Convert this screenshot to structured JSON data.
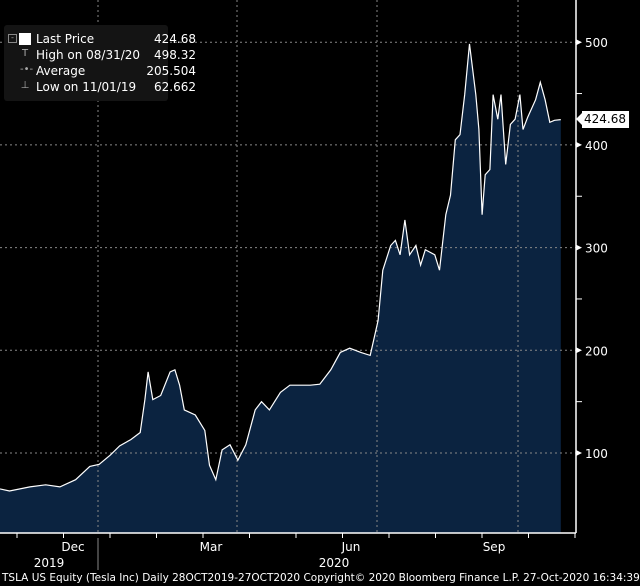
{
  "chart_data": {
    "type": "area",
    "title": "TSLA US Equity (Tesla Inc)",
    "ylim": [
      0,
      540
    ],
    "yticks": [
      100,
      200,
      300,
      400,
      500
    ],
    "xticks": [
      {
        "label": "Dec"
      },
      {
        "label": "Mar"
      },
      {
        "label": "Jun"
      },
      {
        "label": "Sep"
      }
    ],
    "years": [
      "2019",
      "2020"
    ],
    "grid": true,
    "line_color": "#ffffff",
    "fill_color": "#0b2340",
    "x_unit": "days since 28-Oct-2019",
    "points": [
      [
        0,
        65
      ],
      [
        6,
        63
      ],
      [
        19,
        67
      ],
      [
        29,
        69
      ],
      [
        38,
        67
      ],
      [
        48,
        74
      ],
      [
        57,
        87
      ],
      [
        63,
        89
      ],
      [
        70,
        98
      ],
      [
        76,
        107
      ],
      [
        83,
        113
      ],
      [
        89,
        120
      ],
      [
        92,
        152
      ],
      [
        94,
        179
      ],
      [
        97,
        152
      ],
      [
        102,
        156
      ],
      [
        108,
        179
      ],
      [
        111,
        181
      ],
      [
        114,
        166
      ],
      [
        117,
        142
      ],
      [
        124,
        137
      ],
      [
        130,
        122
      ],
      [
        133,
        88
      ],
      [
        137,
        74
      ],
      [
        141,
        103
      ],
      [
        146,
        108
      ],
      [
        151,
        93
      ],
      [
        156,
        108
      ],
      [
        162,
        142
      ],
      [
        166,
        150
      ],
      [
        171,
        142
      ],
      [
        178,
        159
      ],
      [
        184,
        166
      ],
      [
        190,
        166
      ],
      [
        197,
        166
      ],
      [
        203,
        167
      ],
      [
        210,
        181
      ],
      [
        216,
        198
      ],
      [
        222,
        202
      ],
      [
        229,
        198
      ],
      [
        235,
        195
      ],
      [
        240,
        229
      ],
      [
        243,
        278
      ],
      [
        248,
        302
      ],
      [
        251,
        307
      ],
      [
        254,
        293
      ],
      [
        257,
        327
      ],
      [
        260,
        293
      ],
      [
        264,
        302
      ],
      [
        267,
        283
      ],
      [
        270,
        298
      ],
      [
        276,
        293
      ],
      [
        279,
        278
      ],
      [
        283,
        332
      ],
      [
        286,
        351
      ],
      [
        289,
        405
      ],
      [
        292,
        410
      ],
      [
        295,
        449
      ],
      [
        298,
        498.32
      ],
      [
        302,
        449
      ],
      [
        304,
        415
      ],
      [
        306,
        332
      ],
      [
        308,
        371
      ],
      [
        311,
        376
      ],
      [
        313,
        449
      ],
      [
        316,
        425
      ],
      [
        318,
        449
      ],
      [
        321,
        381
      ],
      [
        324,
        420
      ],
      [
        327,
        425
      ],
      [
        330,
        449
      ],
      [
        332,
        415
      ],
      [
        335,
        427
      ],
      [
        340,
        444
      ],
      [
        343,
        461
      ],
      [
        346,
        444
      ],
      [
        349,
        422
      ],
      [
        352,
        424
      ],
      [
        356,
        424.68
      ]
    ]
  },
  "legend": {
    "last_label": "Last Price",
    "last_value": "424.68",
    "high_label": "High on 08/31/20",
    "high_value": "498.32",
    "avg_label": "Average",
    "avg_value": "205.504",
    "low_label": "Low on 11/01/19",
    "low_value": "62.662"
  },
  "last_price_tag": "424.68",
  "footer": "TSLA US Equity (Tesla Inc)  Daily 28OCT2019-27OCT2020 Copyright© 2020 Bloomberg Finance L.P. 27-Oct-2020 16:34:39"
}
